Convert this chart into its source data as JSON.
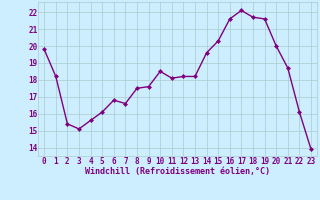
{
  "x": [
    0,
    1,
    2,
    3,
    4,
    5,
    6,
    7,
    8,
    9,
    10,
    11,
    12,
    13,
    14,
    15,
    16,
    17,
    18,
    19,
    20,
    21,
    22,
    23
  ],
  "y": [
    19.8,
    18.2,
    15.4,
    15.1,
    15.6,
    16.1,
    16.8,
    16.6,
    17.5,
    17.6,
    18.5,
    18.1,
    18.2,
    18.2,
    19.6,
    20.3,
    21.6,
    22.1,
    21.7,
    21.6,
    20.0,
    18.7,
    16.1,
    13.9
  ],
  "line_color": "#800080",
  "marker": "D",
  "marker_size": 2.0,
  "bg_color": "#cceeff",
  "grid_color": "#aacccc",
  "xlabel": "Windchill (Refroidissement éolien,°C)",
  "xlabel_fontsize": 6.0,
  "xtick_labels": [
    "0",
    "1",
    "2",
    "3",
    "4",
    "5",
    "6",
    "7",
    "8",
    "9",
    "10",
    "11",
    "12",
    "13",
    "14",
    "15",
    "16",
    "17",
    "18",
    "19",
    "20",
    "21",
    "22",
    "23"
  ],
  "ytick_labels": [
    "14",
    "15",
    "16",
    "17",
    "18",
    "19",
    "20",
    "21",
    "22"
  ],
  "ylim": [
    13.5,
    22.6
  ],
  "xlim": [
    -0.5,
    23.5
  ],
  "tick_fontsize": 5.5,
  "linewidth": 1.0,
  "figsize": [
    3.2,
    2.0
  ],
  "dpi": 100
}
